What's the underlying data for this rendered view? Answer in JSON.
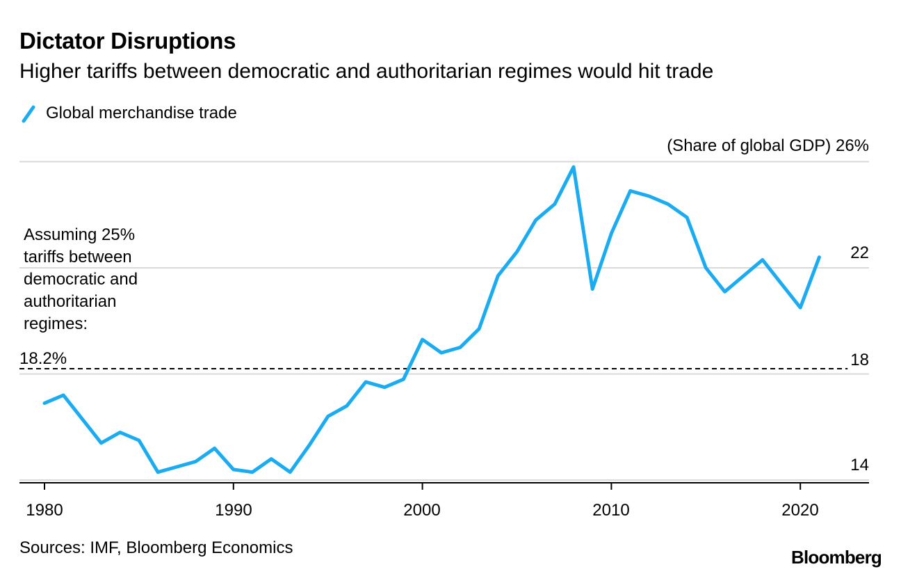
{
  "title": "Dictator Disruptions",
  "subtitle": "Higher tariffs between democratic and authoritarian regimes would hit trade",
  "legend": {
    "label": "Global merchandise trade",
    "color": "#1AABF0"
  },
  "units_label": "(Share of global GDP) 26%",
  "y_ticks": [
    {
      "label": "22"
    },
    {
      "label": "18"
    },
    {
      "label": "14"
    }
  ],
  "x_ticks": [
    {
      "label": "1980"
    },
    {
      "label": "1990"
    },
    {
      "label": "2000"
    },
    {
      "label": "2010"
    },
    {
      "label": "2020"
    }
  ],
  "annotation": {
    "lines": [
      "Assuming 25%",
      "tariffs between",
      "democratic and",
      "authoritarian",
      "regimes:"
    ],
    "value_label": "18.2%"
  },
  "source": "Sources: IMF, Bloomberg Economics",
  "brand": "Bloomberg",
  "chart_data": {
    "type": "line",
    "title": "Dictator Disruptions",
    "subtitle": "Higher tariffs between democratic and authoritarian regimes would hit trade",
    "ylabel": "Share of global GDP (%)",
    "xlabel": "",
    "ylim": [
      13.9,
      26
    ],
    "xlim": [
      1979,
      2023.5
    ],
    "gridlines": [
      14,
      18,
      22,
      26
    ],
    "x_ticks": [
      1980,
      1990,
      2000,
      2010,
      2020
    ],
    "reference_line": {
      "value": 18.2,
      "label": "18.2%",
      "style": "dashed",
      "x_range": [
        1980,
        2022.5
      ]
    },
    "series": [
      {
        "name": "Global merchandise trade",
        "color": "#1AABF0",
        "x": [
          1980,
          1981,
          1982,
          1983,
          1984,
          1985,
          1986,
          1987,
          1988,
          1989,
          1990,
          1991,
          1992,
          1993,
          1994,
          1995,
          1996,
          1997,
          1998,
          1999,
          2000,
          2001,
          2002,
          2003,
          2004,
          2005,
          2006,
          2007,
          2008,
          2009,
          2010,
          2011,
          2012,
          2013,
          2014,
          2015,
          2016,
          2017,
          2018,
          2019,
          2020,
          2021
        ],
        "y": [
          16.9,
          17.2,
          16.3,
          15.4,
          15.8,
          15.5,
          14.3,
          14.5,
          14.7,
          15.2,
          14.4,
          14.3,
          14.8,
          14.3,
          15.3,
          16.4,
          16.8,
          17.7,
          17.5,
          17.8,
          19.3,
          18.8,
          19.0,
          19.7,
          21.7,
          22.6,
          23.8,
          24.4,
          25.8,
          21.2,
          23.3,
          24.9,
          24.7,
          24.4,
          23.9,
          22.0,
          21.1,
          21.7,
          22.3,
          21.4,
          20.5,
          22.4
        ]
      }
    ]
  }
}
